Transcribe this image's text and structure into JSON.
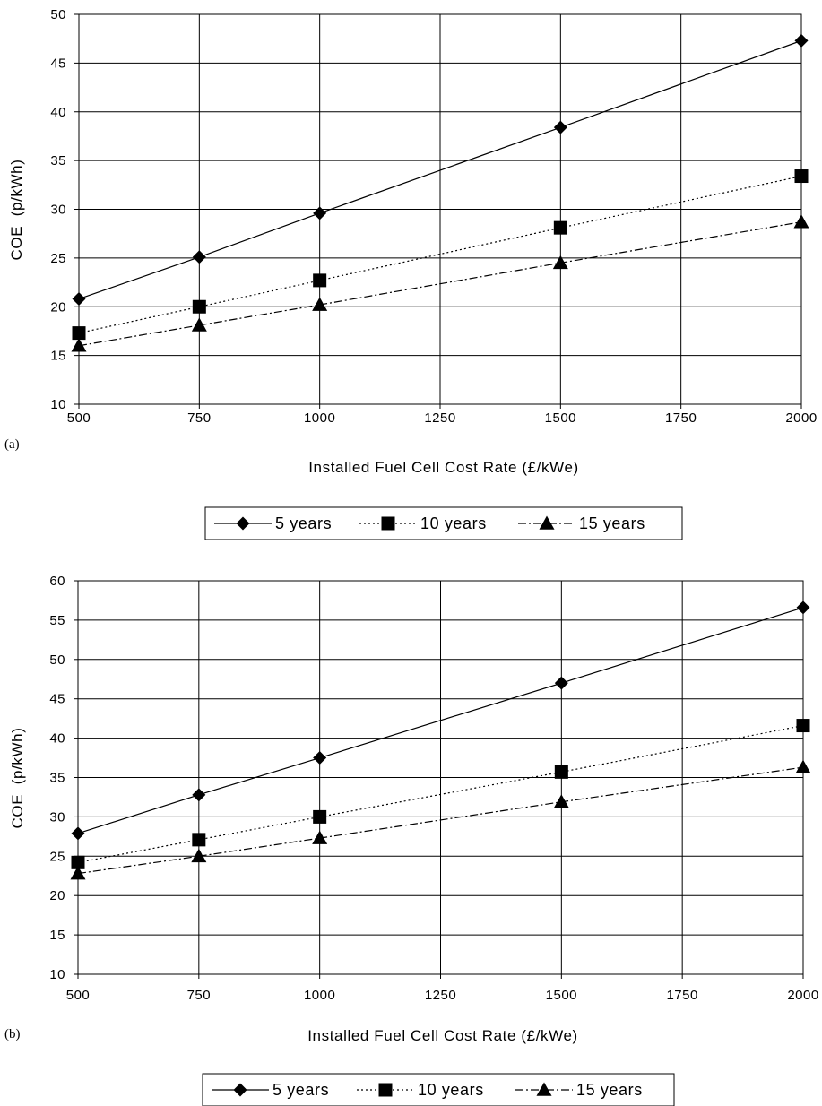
{
  "chart_data": [
    {
      "type": "line",
      "panel_label": "(a)",
      "xlabel": "Installed Fuel Cell Cost Rate (£/kWe)",
      "ylabel": "COE  (p/kWh)",
      "x_ticks": [
        "500",
        "750",
        "1000",
        "1250",
        "1500",
        "1750",
        "2000"
      ],
      "y_ticks": [
        "10",
        "15",
        "20",
        "25",
        "30",
        "35",
        "40",
        "45",
        "50"
      ],
      "ylim": [
        10,
        50
      ],
      "xlim": [
        500,
        2000
      ],
      "grid": true,
      "legend_position": "bottom",
      "x": [
        500,
        750,
        1000,
        1500,
        2000
      ],
      "series": [
        {
          "name": "5 years",
          "values": [
            20.8,
            25.1,
            29.6,
            38.4,
            47.3
          ],
          "marker": "diamond",
          "dash": "solid"
        },
        {
          "name": "10 years",
          "values": [
            17.3,
            20.0,
            22.7,
            28.1,
            33.4
          ],
          "marker": "square",
          "dash": "dotted"
        },
        {
          "name": "15 years",
          "values": [
            16.0,
            18.1,
            20.2,
            24.5,
            28.7
          ],
          "marker": "triangle",
          "dash": "dashdot"
        }
      ]
    },
    {
      "type": "line",
      "panel_label": "(b)",
      "xlabel": "Installed Fuel Cell Cost Rate (£/kWe)",
      "ylabel": "COE  (p/kWh)",
      "x_ticks": [
        "500",
        "750",
        "1000",
        "1250",
        "1500",
        "1750",
        "2000"
      ],
      "y_ticks": [
        "10",
        "15",
        "20",
        "25",
        "30",
        "35",
        "40",
        "45",
        "50",
        "55",
        "60"
      ],
      "ylim": [
        10,
        60
      ],
      "xlim": [
        500,
        2000
      ],
      "grid": true,
      "legend_position": "bottom",
      "x": [
        500,
        750,
        1000,
        1500,
        2000
      ],
      "series": [
        {
          "name": "5 years",
          "values": [
            27.9,
            32.8,
            37.5,
            47.0,
            56.6
          ],
          "marker": "diamond",
          "dash": "solid"
        },
        {
          "name": "10 years",
          "values": [
            24.2,
            27.1,
            30.0,
            35.7,
            41.6
          ],
          "marker": "square",
          "dash": "dotted"
        },
        {
          "name": "15 years",
          "values": [
            22.8,
            25.0,
            27.3,
            31.9,
            36.3
          ],
          "marker": "triangle",
          "dash": "dashdot"
        }
      ]
    }
  ]
}
